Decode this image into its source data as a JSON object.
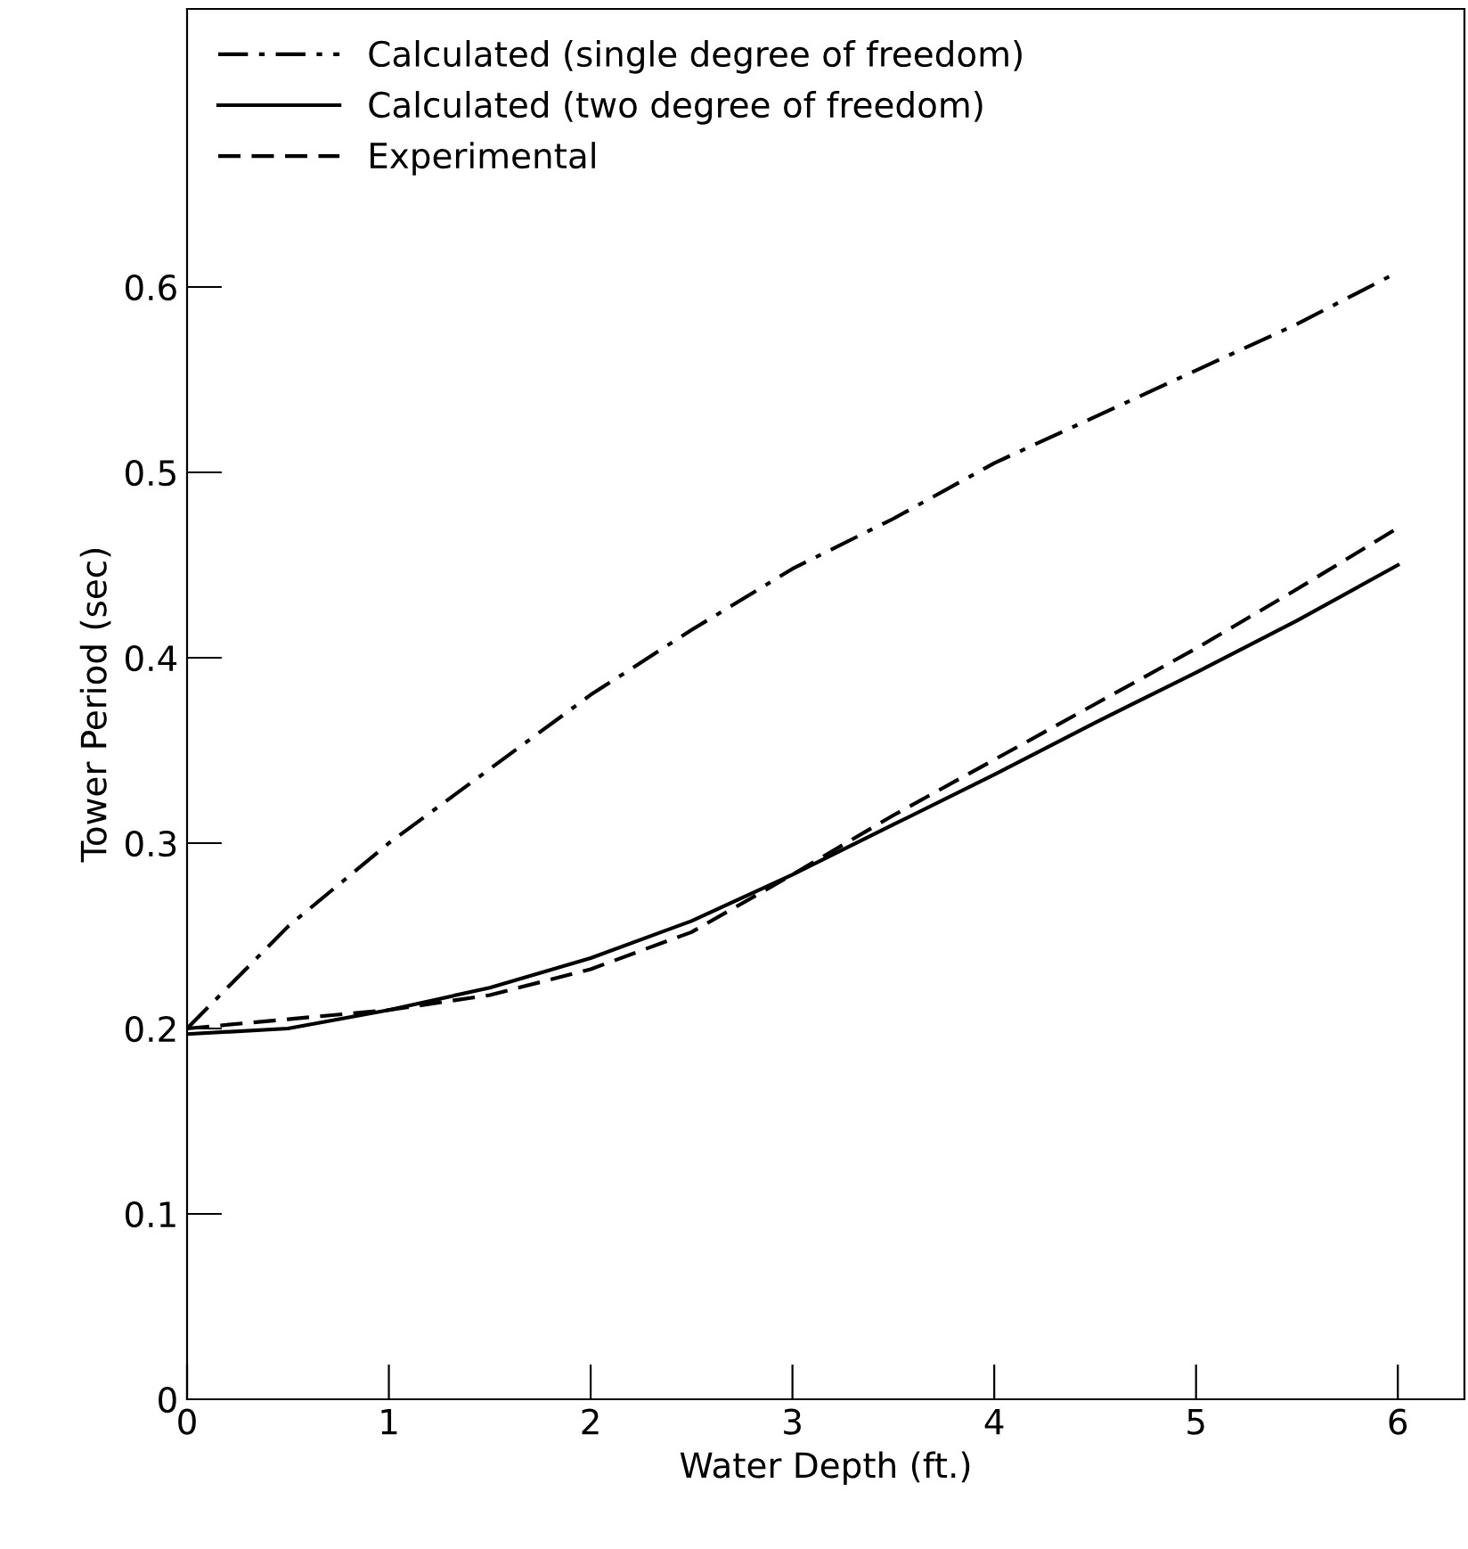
{
  "chart_data": {
    "type": "line",
    "xlabel": "Water Depth (ft.)",
    "ylabel": "Tower Period (sec)",
    "xlim": [
      0,
      6.33
    ],
    "ylim": [
      0,
      0.75
    ],
    "xticks": [
      0,
      1,
      2,
      3,
      4,
      5,
      6
    ],
    "yticks": [
      0,
      0.1,
      0.2,
      0.3,
      0.4,
      0.5,
      0.6
    ],
    "x": [
      0,
      0.5,
      1,
      1.5,
      2,
      2.5,
      3,
      3.5,
      4,
      4.5,
      5,
      5.5,
      6
    ],
    "series": [
      {
        "name": "Calculated (single degree of freedom)",
        "color": "#000000",
        "line_style": "dashdot",
        "values": [
          0.2,
          0.255,
          0.3,
          0.34,
          0.38,
          0.415,
          0.448,
          0.475,
          0.505,
          0.53,
          0.555,
          0.58,
          0.608
        ]
      },
      {
        "name": "Calculated (two degree of freedom)",
        "color": "#000000",
        "line_style": "solid",
        "values": [
          0.197,
          0.2,
          0.21,
          0.222,
          0.238,
          0.258,
          0.283,
          0.31,
          0.337,
          0.365,
          0.392,
          0.42,
          0.45
        ]
      },
      {
        "name": "Experimental",
        "color": "#000000",
        "line_style": "dashed",
        "values": [
          0.2,
          0.205,
          0.21,
          0.218,
          0.232,
          0.252,
          0.283,
          0.315,
          0.345,
          0.375,
          0.405,
          0.437,
          0.47
        ]
      }
    ],
    "grid": false,
    "legend": "top left"
  }
}
